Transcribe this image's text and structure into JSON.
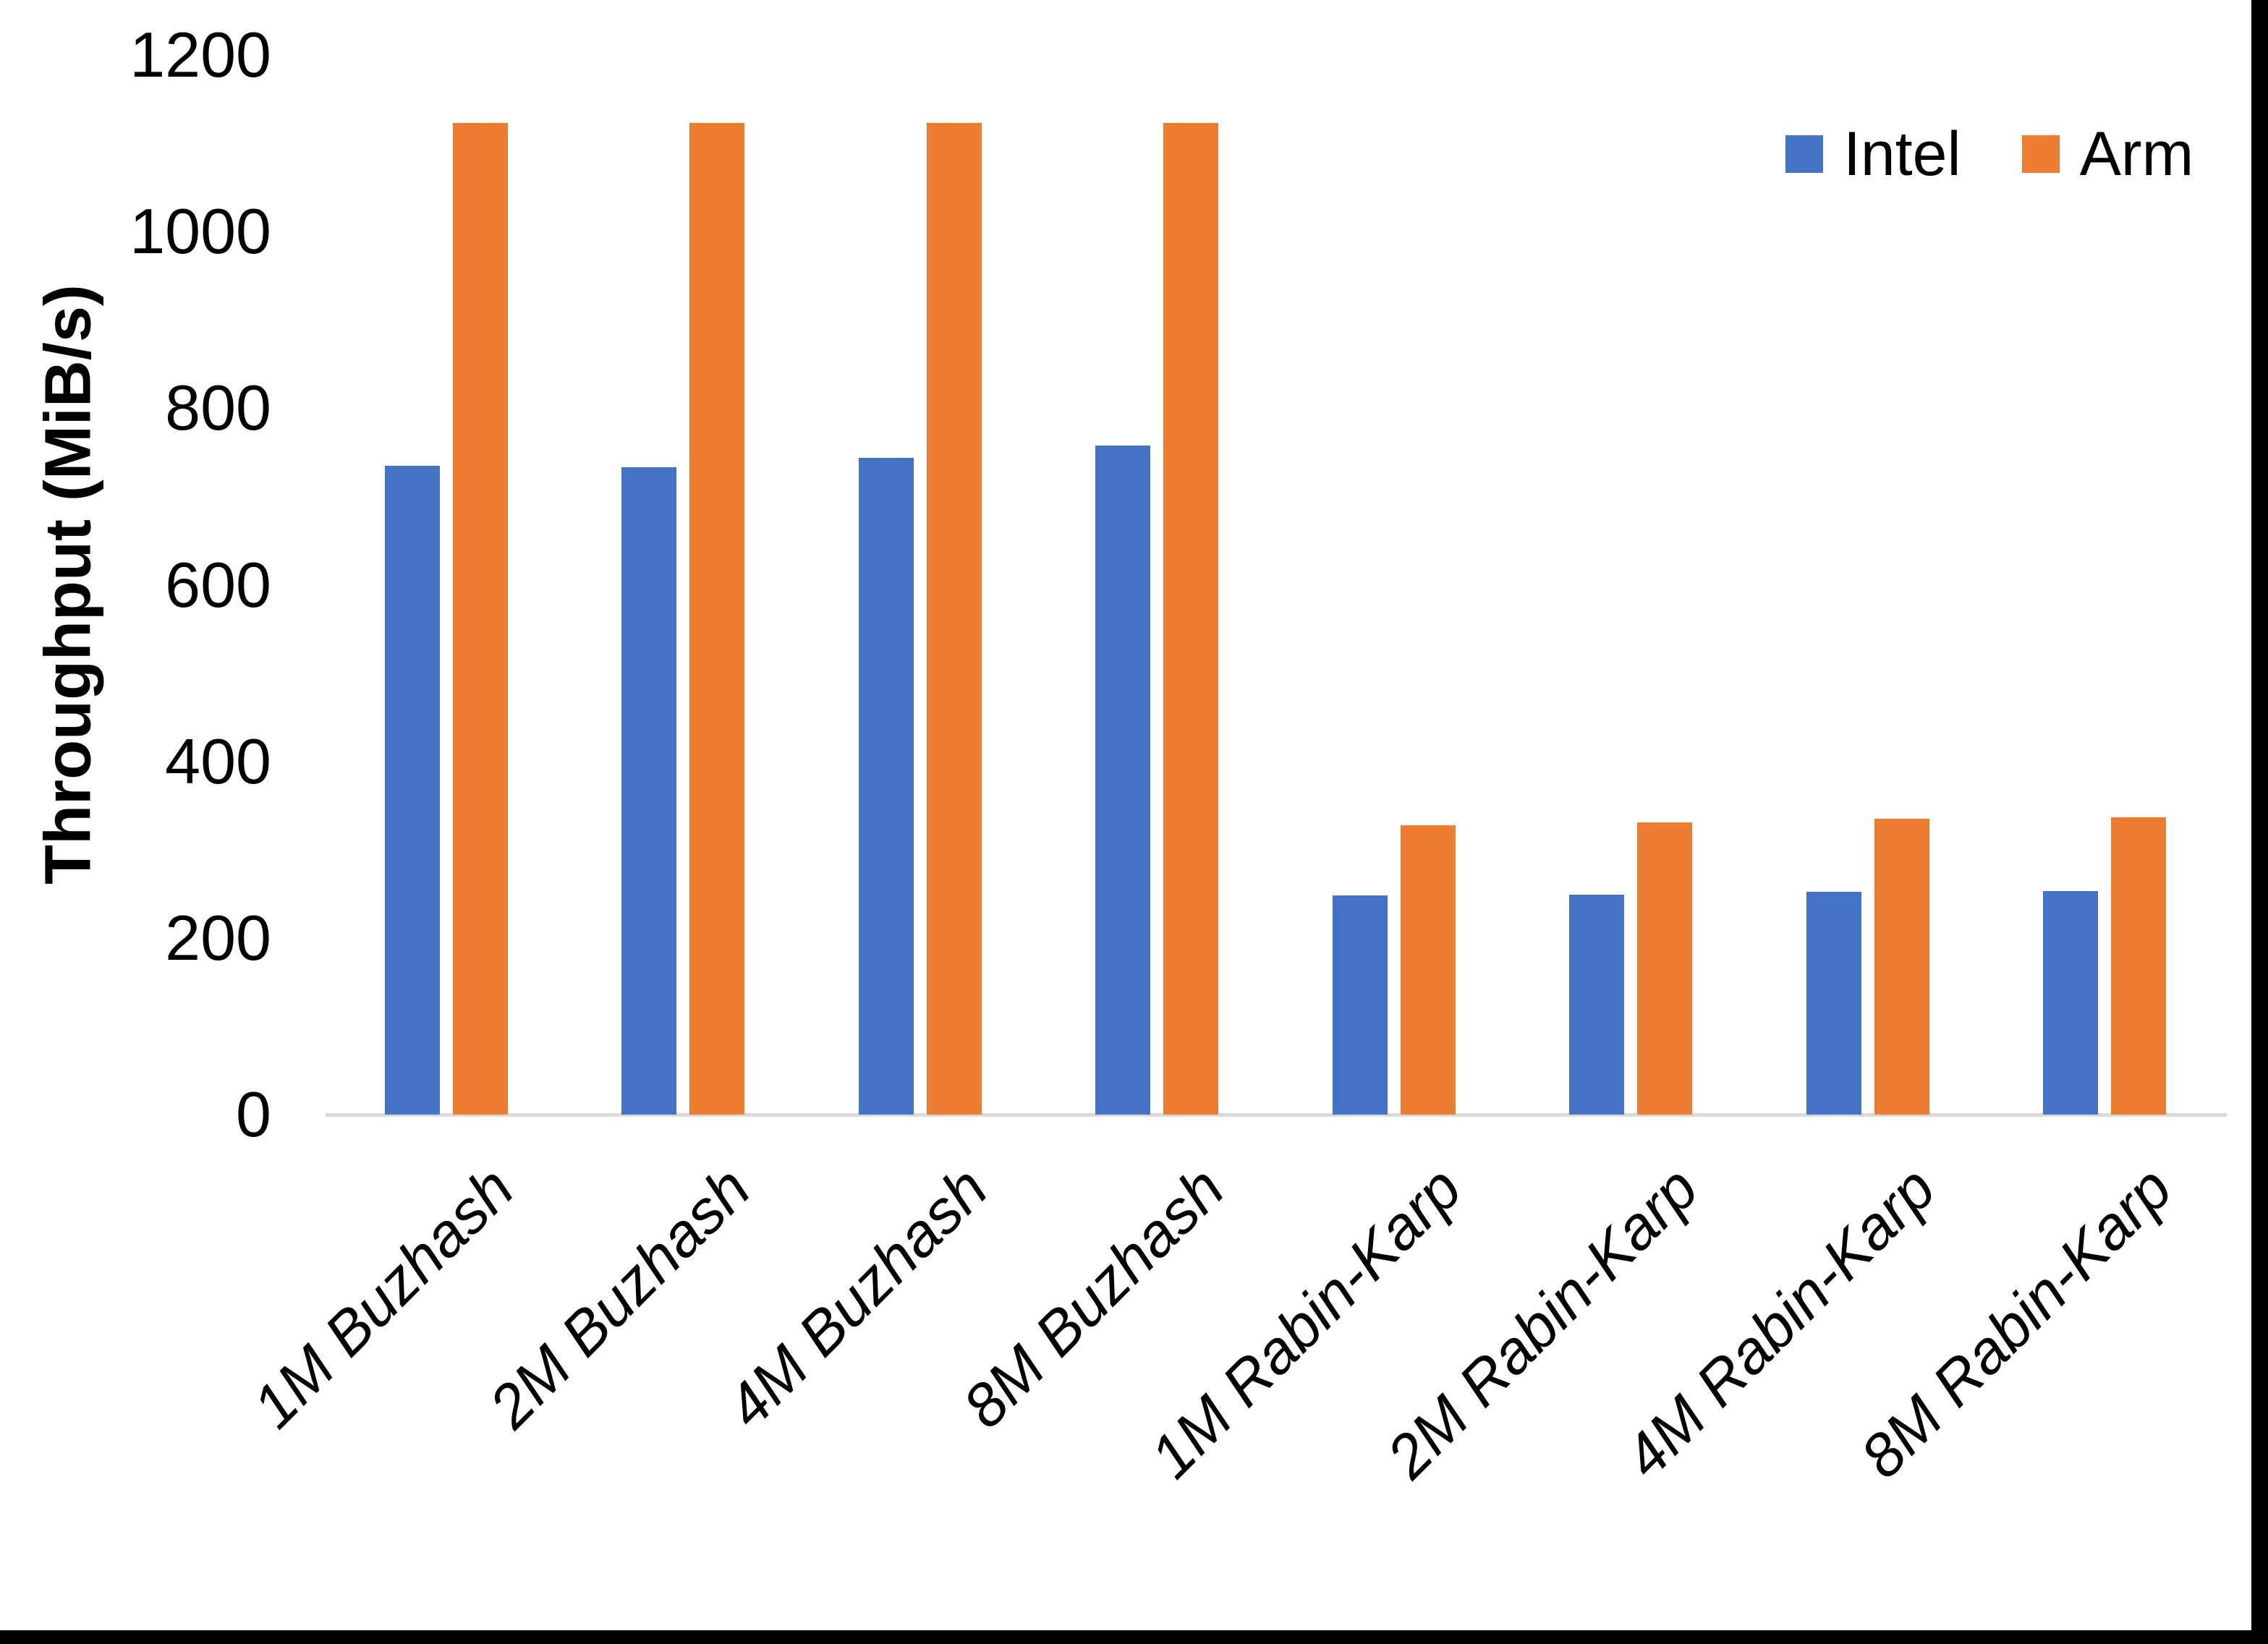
{
  "chart_data": {
    "type": "bar",
    "title": "",
    "categories": [
      "1M Buzhash",
      "2M Buzhash",
      "4M Buzhash",
      "8M Buzhash",
      "1M Rabin-Karp",
      "2M Rabin-Karp",
      "4M Rabin-Karp",
      "8M Rabin-Karp"
    ],
    "series": [
      {
        "name": "Intel",
        "color": "#4472C4",
        "values": [
          735,
          733,
          744,
          758,
          248,
          249,
          252,
          253
        ]
      },
      {
        "name": "Arm",
        "color": "#ED7D31",
        "values": [
          1123,
          1123,
          1123,
          1123,
          328,
          331,
          335,
          337
        ]
      }
    ],
    "xlabel": "",
    "ylabel": "Throughput (MiB/s)",
    "ylim": [
      0,
      1200
    ],
    "yticks": [
      0,
      200,
      400,
      600,
      800,
      1000,
      1200
    ],
    "grid": false,
    "legend_position": "top-right",
    "axis_line_color": "#D9D9D9",
    "background_color": "#FFFFFF",
    "frame_border_color": "#000000"
  }
}
